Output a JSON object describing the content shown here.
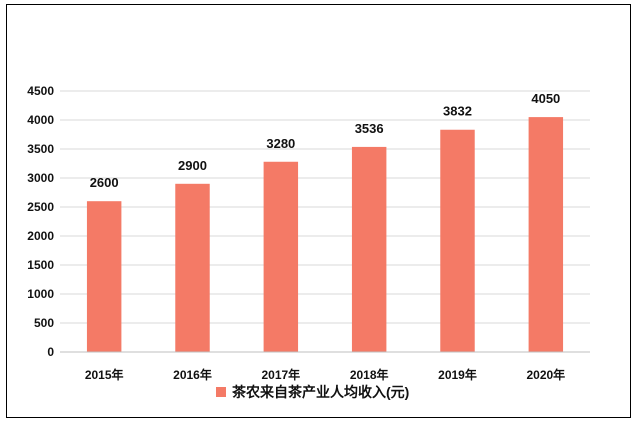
{
  "chart_data": {
    "type": "bar",
    "categories": [
      "2015年",
      "2016年",
      "2017年",
      "2018年",
      "2019年",
      "2020年"
    ],
    "series": [
      {
        "name": "茶农来自茶产业人均收入(元)",
        "values": [
          2600,
          2900,
          3280,
          3536,
          3832,
          4050
        ],
        "color": "#F47A66"
      }
    ],
    "yticks": [
      0,
      500,
      1000,
      1500,
      2000,
      2500,
      3000,
      3500,
      4000,
      4500
    ],
    "ylim": [
      0,
      4500
    ],
    "grid": true,
    "legend_position": "bottom",
    "data_labels": true
  }
}
